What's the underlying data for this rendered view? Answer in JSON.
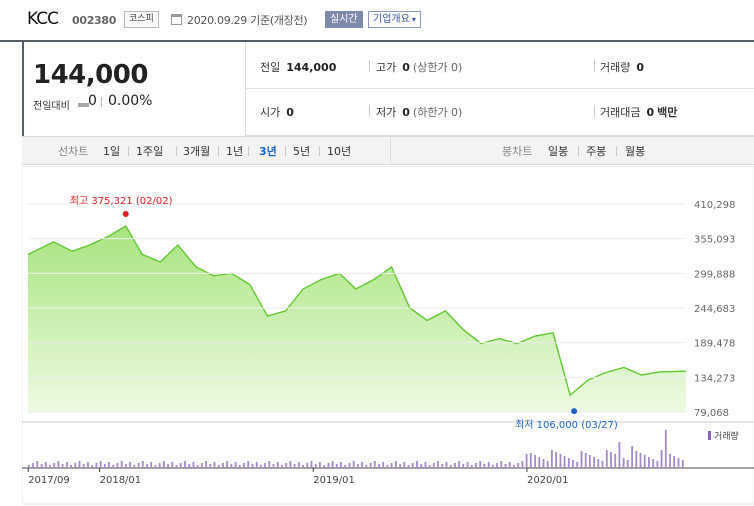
{
  "header": {
    "company_name": "KCC",
    "stock_code": "002380",
    "market_badge": "코스피",
    "date_label": "2020.09.29 기준(개장전)",
    "realtime_button": "실시간",
    "company_info_button": "기업개요"
  },
  "quote": {
    "price": "144,000",
    "change_label": "전일대비",
    "change_value": "0",
    "change_pct": "0.00%",
    "prev_close_label": "전일",
    "prev_close": "144,000",
    "high_label": "고가",
    "high": "0",
    "high_sub": "(상한가 0)",
    "volume_label": "거래량",
    "volume": "0",
    "open_label": "시가",
    "open": "0",
    "low_label": "저가",
    "low": "0",
    "low_sub": "(하한가 0)",
    "amount_label": "거래대금",
    "amount": "0",
    "amount_unit": "백만"
  },
  "period_tabs": {
    "line_chart_label": "선차트",
    "items": [
      "1일",
      "1주일",
      "3개월",
      "1년",
      "3년",
      "5년",
      "10년"
    ],
    "active": "3년",
    "candle_label": "봉차트",
    "candle_items": [
      "일봉",
      "주봉",
      "월봉"
    ]
  },
  "chart_data": {
    "type": "area",
    "x_ticks": [
      "2017/09",
      "2018/01",
      "2019/01",
      "2020/01"
    ],
    "y_ticks": [
      "410,298",
      "355,093",
      "299,888",
      "244,683",
      "189,478",
      "134,273",
      "79,068"
    ],
    "ylim": [
      79068,
      410298
    ],
    "max_annotation": "최고 375,321 (02/02)",
    "min_annotation": "최저 106,000 (03/27)",
    "volume_legend": "거래량",
    "price_series": [
      [
        "2017-09",
        330000
      ],
      [
        "2017-10",
        350000
      ],
      [
        "2017-11",
        335000
      ],
      [
        "2017-12",
        345000
      ],
      [
        "2018-01",
        358000
      ],
      [
        "2018-02",
        375321
      ],
      [
        "2018-03",
        330000
      ],
      [
        "2018-04",
        318000
      ],
      [
        "2018-05",
        345000
      ],
      [
        "2018-06",
        310000
      ],
      [
        "2018-07",
        296000
      ],
      [
        "2018-08",
        300000
      ],
      [
        "2018-09",
        282000
      ],
      [
        "2018-10",
        232000
      ],
      [
        "2018-11",
        240000
      ],
      [
        "2018-12",
        275000
      ],
      [
        "2019-01",
        290000
      ],
      [
        "2019-02",
        300000
      ],
      [
        "2019-03",
        275000
      ],
      [
        "2019-04",
        290000
      ],
      [
        "2019-05",
        310000
      ],
      [
        "2019-06",
        245000
      ],
      [
        "2019-07",
        225000
      ],
      [
        "2019-08",
        240000
      ],
      [
        "2019-09",
        210000
      ],
      [
        "2019-10",
        188000
      ],
      [
        "2019-11",
        196000
      ],
      [
        "2019-12",
        188000
      ],
      [
        "2020-01",
        200000
      ],
      [
        "2020-02",
        205000
      ],
      [
        "2020-03",
        106000
      ],
      [
        "2020-04",
        130000
      ],
      [
        "2020-05",
        142000
      ],
      [
        "2020-06",
        150000
      ],
      [
        "2020-07",
        138000
      ],
      [
        "2020-08",
        143000
      ],
      [
        "2020-09",
        144000
      ]
    ]
  }
}
